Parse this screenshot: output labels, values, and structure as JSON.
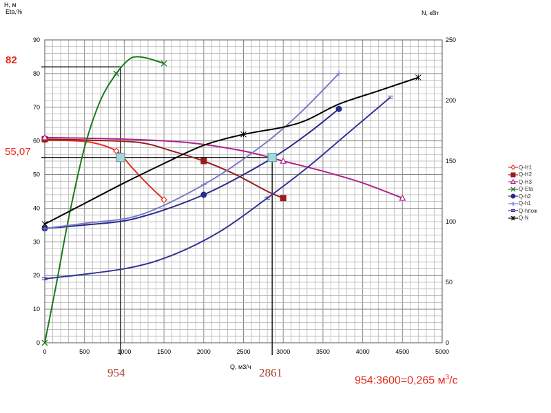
{
  "chart_data": {
    "type": "line",
    "xlabel": "Q, м3/ч",
    "ylabel_left_1": "H, м",
    "ylabel_left_2": "Eta,%",
    "ylabel_right": "N, кВт",
    "xlim": [
      0,
      5000
    ],
    "ylim_left": [
      0,
      90
    ],
    "ylim_right": [
      0,
      250
    ],
    "x_ticks": [
      "0",
      "500",
      "1000",
      "1500",
      "2000",
      "2500",
      "3000",
      "3500",
      "4000",
      "4500",
      "5000"
    ],
    "y_left_ticks": [
      "0",
      "10",
      "20",
      "30",
      "40",
      "50",
      "60",
      "70",
      "80",
      "90"
    ],
    "y_right_ticks": [
      "0",
      "50",
      "100",
      "150",
      "200",
      "250"
    ],
    "grid": true,
    "legend_position": "right",
    "series": [
      {
        "name": "Q-H1",
        "axis": "left",
        "color": "#e03020",
        "marker": "diamond",
        "x": [
          0,
          300,
          600,
          900,
          1100,
          1300,
          1500
        ],
        "y": [
          60.2,
          60.1,
          59.5,
          57.0,
          52.0,
          47.0,
          42.5
        ]
      },
      {
        "name": "Q-H2",
        "axis": "left",
        "color": "#9a1c1c",
        "marker": "square",
        "x": [
          0,
          600,
          1200,
          1600,
          2000,
          2400,
          2800,
          3000
        ],
        "y": [
          60.5,
          60.2,
          59.5,
          57.0,
          54.0,
          50.0,
          45.0,
          43.0
        ]
      },
      {
        "name": "Q-H3",
        "axis": "left",
        "color": "#b0208a",
        "marker": "triangle",
        "x": [
          0,
          1000,
          1800,
          2500,
          3000,
          3500,
          4000,
          4500
        ],
        "y": [
          61.0,
          60.5,
          59.5,
          57.0,
          54.0,
          51.0,
          47.5,
          43.0
        ]
      },
      {
        "name": "Q-Eta",
        "axis": "left",
        "color": "#1a7a1a",
        "marker": "x",
        "x": [
          0,
          150,
          300,
          500,
          700,
          900,
          1050,
          1150,
          1300,
          1500
        ],
        "y": [
          0,
          18,
          37,
          58,
          72,
          80,
          84,
          85,
          84.5,
          83
        ]
      },
      {
        "name": "Q-h2",
        "axis": "left",
        "color": "#2a2a8c",
        "marker": "circle",
        "x": [
          0,
          500,
          1150,
          2000,
          2800,
          3300,
          3700
        ],
        "y": [
          34,
          35,
          37,
          44,
          54,
          62,
          69.5
        ]
      },
      {
        "name": "Q-h1",
        "axis": "left",
        "color": "#7a7ac8",
        "marker": "plus",
        "x": [
          0,
          500,
          1200,
          2000,
          2700,
          3200,
          3700
        ],
        "y": [
          34,
          35.5,
          38,
          47,
          58,
          68,
          80
        ]
      },
      {
        "name": "Q-hпож",
        "axis": "left",
        "color": "#333399",
        "marker": "line",
        "x": [
          0,
          1000,
          1600,
          2200,
          2800,
          3300,
          3800,
          4350
        ],
        "y": [
          19,
          22,
          26,
          33,
          43,
          52,
          62,
          73
        ]
      },
      {
        "name": "Q-N",
        "axis": "right",
        "color": "#000000",
        "marker": "asterisk",
        "x": [
          0,
          500,
          1000,
          1500,
          2000,
          2500,
          3000,
          3300,
          3700,
          4200,
          4700
        ],
        "y": [
          98,
          115,
          132,
          148,
          163,
          172,
          178,
          184,
          197,
          208,
          219
        ]
      }
    ],
    "annotations": {
      "eta_max_label": "82",
      "head_label": "55,07",
      "q1_label": "954",
      "q2_label": "2861",
      "conversion_note_prefix": "954:3600=0,265 м",
      "conversion_note_sup": "3",
      "conversion_note_suffix": "/с"
    },
    "reference_lines": {
      "eta_level": 82,
      "eta_q": 954,
      "head_level": 55.07,
      "op_point_1_q": 954,
      "op_point_2_q": 2861
    }
  },
  "colors": {
    "grid": "#b5b5b5",
    "annotation_red": "#e8261a",
    "annotation_brown": "#a0402a",
    "operating_point": "#a6d8dc"
  }
}
